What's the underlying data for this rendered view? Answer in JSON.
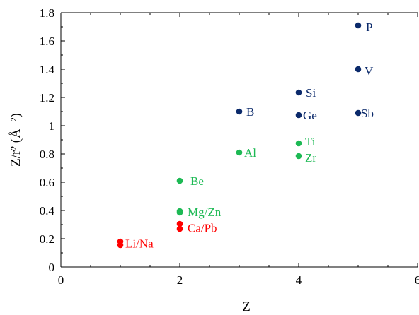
{
  "chart_data": {
    "type": "scatter",
    "title": "",
    "xlabel": "Z",
    "ylabel": "Z/r² (Å⁻²)",
    "xlim": [
      0,
      6
    ],
    "ylim": [
      0,
      1.8
    ],
    "x_ticks": [
      0,
      2,
      4,
      6
    ],
    "x_tick_labels": [
      "0",
      "2",
      "4",
      "6"
    ],
    "y_ticks": [
      0,
      0.2,
      0.4,
      0.6,
      0.8,
      1,
      1.2,
      1.4,
      1.6,
      1.8
    ],
    "y_tick_labels": [
      "0",
      "0.2",
      "0.4",
      "0.6",
      "0.8",
      "1",
      "1.2",
      "1.4",
      "1.6",
      "1.8"
    ],
    "x_minor_step": 0.5,
    "y_minor_step": 0.1,
    "grid": false,
    "colors": {
      "red": "#ff0000",
      "green": "#1db954",
      "navy": "#0b2a6b"
    },
    "points": [
      {
        "label": "Li/Na",
        "color": "red",
        "values": [
          [
            1,
            0.18
          ],
          [
            1,
            0.155
          ]
        ]
      },
      {
        "label": "Ca/Pb",
        "color": "red",
        "values": [
          [
            2,
            0.305
          ],
          [
            2,
            0.27
          ]
        ]
      },
      {
        "label": "Mg/Zn",
        "color": "green",
        "values": [
          [
            2,
            0.395
          ],
          [
            2,
            0.385
          ]
        ]
      },
      {
        "label": "Be",
        "color": "green",
        "values": [
          [
            2,
            0.61
          ]
        ]
      },
      {
        "label": "Al",
        "color": "green",
        "values": [
          [
            3,
            0.81
          ]
        ]
      },
      {
        "label": "Ti",
        "color": "green",
        "values": [
          [
            4,
            0.875
          ]
        ]
      },
      {
        "label": "Zr",
        "color": "green",
        "values": [
          [
            4,
            0.785
          ]
        ]
      },
      {
        "label": "B",
        "color": "navy",
        "values": [
          [
            3,
            1.1
          ]
        ]
      },
      {
        "label": "Si",
        "color": "navy",
        "values": [
          [
            4,
            1.235
          ]
        ]
      },
      {
        "label": "Ge",
        "color": "navy",
        "values": [
          [
            4,
            1.075
          ]
        ]
      },
      {
        "label": "P",
        "color": "navy",
        "values": [
          [
            5,
            1.71
          ]
        ]
      },
      {
        "label": "V",
        "color": "navy",
        "values": [
          [
            5,
            1.4
          ]
        ]
      },
      {
        "label": "Sb",
        "color": "navy",
        "values": [
          [
            5,
            1.09
          ]
        ]
      }
    ]
  }
}
